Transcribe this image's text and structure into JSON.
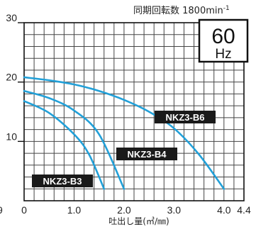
{
  "chart_data": {
    "type": "line",
    "title": "同期回転数 1800min",
    "title_superscript": "-1",
    "badge": {
      "value": "60",
      "unit": "Hz"
    },
    "xlabel": "吐出し量(㎥/㎜)",
    "xlim": [
      0,
      4.4
    ],
    "ylim": [
      0,
      30
    ],
    "x_ticks": [
      {
        "value": 0,
        "label": "0"
      },
      {
        "value": 1.0,
        "label": "1.0"
      },
      {
        "value": 2.0,
        "label": "2.0"
      },
      {
        "value": 3.0,
        "label": "3.0"
      },
      {
        "value": 4.0,
        "label": "4.0"
      },
      {
        "value": 4.4,
        "label": "4.4"
      }
    ],
    "y_ticks": [
      {
        "value": 10,
        "label": "10"
      },
      {
        "value": 20,
        "label": "20"
      },
      {
        "value": 30,
        "label": "30"
      }
    ],
    "left_edge_label": "9",
    "grid": true,
    "line_color": "#22a0d8",
    "series": [
      {
        "name": "NKZ3-B6",
        "x": [
          0,
          0.5,
          1.0,
          1.5,
          2.0,
          2.5,
          3.0,
          3.5,
          4.0
        ],
        "y": [
          20.8,
          20.3,
          19.6,
          18.5,
          17.0,
          15.0,
          12.2,
          7.8,
          2.0
        ]
      },
      {
        "name": "NKZ3-B4",
        "x": [
          0,
          0.5,
          1.0,
          1.5,
          2.0
        ],
        "y": [
          18.5,
          17.3,
          15.2,
          11.2,
          2.0
        ]
      },
      {
        "name": "NKZ3-B3",
        "x": [
          0,
          0.5,
          1.0,
          1.3,
          1.6
        ],
        "y": [
          16.8,
          14.8,
          11.2,
          7.8,
          2.0
        ]
      }
    ]
  }
}
